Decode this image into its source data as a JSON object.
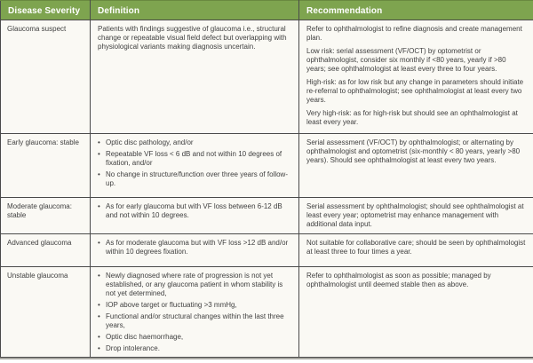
{
  "table": {
    "columns": [
      "Disease Severity",
      "Definition",
      "Recommendation"
    ],
    "bullet_glyph": "•",
    "rows": [
      {
        "severity": "Glaucoma suspect",
        "definition": {
          "paragraphs": [
            "Patients with findings suggestive of glaucoma i.e., structural change or repeatable visual field defect but overlapping with physiological variants making diagnosis uncertain."
          ],
          "bullets": []
        },
        "recommendation": {
          "paragraphs": [
            "Refer to ophthalmologist to refine diagnosis and create management plan.",
            "Low risk: serial assessment (VF/OCT) by optometrist or ophthalmologist, consider six monthly if <80 years, yearly if >80 years; see ophthalmologist at least every three to four years.",
            "High-risk: as for low risk but any change in parameters should initiate re-referral to ophthalmologist; see ophthalmologist at least every two years.",
            "Very high-risk: as for high-risk but should see an ophthalmologist at least every year."
          ]
        }
      },
      {
        "severity": "Early glaucoma: stable",
        "definition": {
          "paragraphs": [],
          "bullets": [
            "Optic disc pathology, and/or",
            "Repeatable VF loss < 6 dB and not within 10 degrees of fixation, and/or",
            "No change in structure/function over three years of follow-up."
          ]
        },
        "recommendation": {
          "paragraphs": [
            "Serial assessment (VF/OCT) by ophthalmologist; or alternating by ophthalmologist and optometrist (six-monthly < 80 years, yearly >80 years). Should see ophthalmologist at least every two years."
          ]
        }
      },
      {
        "severity": "Moderate glaucoma: stable",
        "definition": {
          "paragraphs": [],
          "bullets": [
            "As for early glaucoma but with VF loss between 6-12 dB and not within 10 degrees."
          ]
        },
        "recommendation": {
          "paragraphs": [
            "Serial assessment by ophthalmologist; should see ophthalmologist at least every year; optometrist may enhance management with additional data input."
          ]
        }
      },
      {
        "severity": "Advanced glaucoma",
        "definition": {
          "paragraphs": [],
          "bullets": [
            "As for moderate glaucoma but with VF loss >12 dB and/or within 10 degrees fixation."
          ]
        },
        "recommendation": {
          "paragraphs": [
            "Not suitable for collaborative care; should be seen by ophthalmologist at least three to four times a year."
          ]
        }
      },
      {
        "severity": "Unstable glaucoma",
        "definition": {
          "paragraphs": [],
          "bullets": [
            "Newly diagnosed where rate of progression is not yet established, or any glaucoma patient in whom stability is not yet determined,",
            "IOP above target or fluctuating >3 mmHg,",
            "Functional and/or structural changes within the last three years,",
            "Optic disc haemorrhage,",
            "Drop intolerance."
          ]
        },
        "recommendation": {
          "paragraphs": [
            "Refer to ophthalmologist as soon as possible; managed by ophthalmologist until deemed stable then as above."
          ]
        }
      }
    ]
  },
  "colors": {
    "header_green": "#7EA44F",
    "header_green_top_edge": "#69893F",
    "grid_border": "#4A4A4A",
    "cell_background": "#FAF9F4",
    "body_text": "#3F3F3F",
    "header_text": "#FFFFFF",
    "bottom_shadow": "#A9A8A2"
  }
}
